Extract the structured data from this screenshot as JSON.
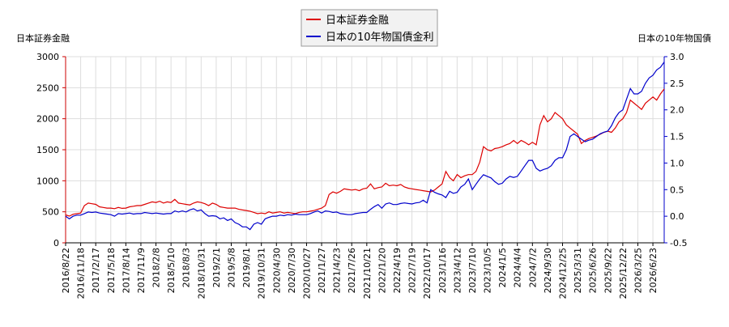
{
  "chart_data": {
    "type": "line",
    "y_label": "日本証券金融",
    "y2_label": "日本の10年物国債",
    "categories": [
      "2016/8/22",
      null,
      null,
      null,
      "2016/11/18",
      null,
      null,
      null,
      "2017/2/17",
      null,
      null,
      null,
      "2017/5/18",
      null,
      null,
      null,
      "2017/8/14",
      null,
      null,
      null,
      "2017/11/9",
      null,
      null,
      null,
      "2018/2/8",
      null,
      null,
      null,
      "2018/5/10",
      null,
      null,
      null,
      "2018/8/3",
      null,
      null,
      null,
      "2018/10/31",
      null,
      null,
      null,
      "2019/2/1",
      null,
      null,
      null,
      "2019/5/8",
      null,
      null,
      null,
      "2019/8/1",
      null,
      null,
      null,
      "2019/10/31",
      null,
      null,
      null,
      "2020/4/30",
      null,
      null,
      null,
      "2020/7/30",
      null,
      null,
      null,
      "2020/10/27",
      null,
      null,
      null,
      "2021/1/27",
      null,
      null,
      null,
      "2021/4/23",
      null,
      null,
      null,
      "2021/7/26",
      null,
      null,
      null,
      "2021/10/21",
      null,
      null,
      null,
      "2022/1/20",
      null,
      null,
      null,
      "2022/4/19",
      null,
      null,
      null,
      "2022/7/19",
      null,
      null,
      null,
      "2022/10/17",
      null,
      null,
      null,
      "2023/1/16",
      null,
      null,
      null,
      "2023/4/12",
      null,
      null,
      null,
      "2023/7/10",
      null,
      null,
      null,
      "2023/10/5",
      null,
      null,
      null,
      "2024/1/5",
      null,
      null,
      null,
      "2024/4/4",
      null,
      null,
      null,
      "2024/7/2",
      null,
      null,
      null,
      "2024/9/30",
      null,
      null,
      null,
      "2024/12/25",
      null,
      null,
      null,
      "2025/3/31",
      null,
      null,
      null,
      "2025/6/26",
      null,
      null,
      null,
      "2025/9/22",
      null,
      null,
      null,
      "2025/12/22",
      null,
      null,
      null,
      "2026/3/25",
      null,
      null,
      null,
      "2026/6/23",
      null,
      null,
      null
    ],
    "series": [
      {
        "name": "日本証券金融",
        "color": "#dd0000",
        "values": [
          450,
          430,
          460,
          470,
          480,
          600,
          640,
          630,
          620,
          580,
          570,
          560,
          560,
          550,
          570,
          555,
          560,
          580,
          590,
          600,
          600,
          620,
          640,
          660,
          650,
          670,
          640,
          660,
          650,
          700,
          640,
          630,
          620,
          610,
          640,
          660,
          650,
          630,
          600,
          640,
          620,
          580,
          570,
          560,
          560,
          560,
          540,
          530,
          520,
          510,
          490,
          470,
          480,
          470,
          500,
          480,
          490,
          500,
          480,
          490,
          480,
          470,
          490,
          500,
          500,
          510,
          520,
          540,
          560,
          600,
          780,
          820,
          800,
          830,
          870,
          860,
          850,
          860,
          840,
          870,
          880,
          950,
          870,
          890,
          900,
          960,
          920,
          930,
          920,
          940,
          900,
          880,
          870,
          860,
          850,
          840,
          830,
          820,
          850,
          900,
          950,
          1150,
          1050,
          1000,
          1100,
          1050,
          1080,
          1100,
          1100,
          1150,
          1300,
          1550,
          1500,
          1480,
          1520,
          1530,
          1550,
          1580,
          1600,
          1650,
          1600,
          1650,
          1620,
          1580,
          1620,
          1580,
          1900,
          2050,
          1950,
          2000,
          2100,
          2050,
          2000,
          1900,
          1850,
          1800,
          1750,
          1600,
          1650,
          1680,
          1700,
          1720,
          1750,
          1780,
          1800,
          1780,
          1850,
          1950,
          2000,
          2100,
          2300,
          2250,
          2200,
          2150,
          2250,
          2300,
          2350,
          2300,
          2400,
          2480
        ]
      },
      {
        "name": "日本の10年物国債金利",
        "color": "#0000cc",
        "axis": "y2",
        "values": [
          0.0,
          -0.05,
          0.0,
          0.02,
          0.02,
          0.05,
          0.08,
          0.07,
          0.08,
          0.06,
          0.05,
          0.04,
          0.03,
          0.0,
          0.05,
          0.04,
          0.05,
          0.06,
          0.04,
          0.05,
          0.05,
          0.07,
          0.06,
          0.05,
          0.06,
          0.05,
          0.04,
          0.05,
          0.05,
          0.1,
          0.08,
          0.1,
          0.08,
          0.12,
          0.14,
          0.1,
          0.12,
          0.05,
          0.0,
          0.01,
          0.0,
          -0.05,
          -0.03,
          -0.08,
          -0.05,
          -0.12,
          -0.15,
          -0.2,
          -0.2,
          -0.25,
          -0.15,
          -0.12,
          -0.15,
          -0.05,
          -0.02,
          0.0,
          0.0,
          0.02,
          0.01,
          0.03,
          0.02,
          0.04,
          0.03,
          0.03,
          0.03,
          0.05,
          0.08,
          0.1,
          0.06,
          0.1,
          0.09,
          0.07,
          0.08,
          0.05,
          0.04,
          0.03,
          0.03,
          0.05,
          0.06,
          0.07,
          0.07,
          0.13,
          0.18,
          0.22,
          0.15,
          0.23,
          0.25,
          0.22,
          0.22,
          0.24,
          0.25,
          0.24,
          0.23,
          0.25,
          0.26,
          0.3,
          0.25,
          0.5,
          0.45,
          0.42,
          0.4,
          0.35,
          0.47,
          0.43,
          0.45,
          0.55,
          0.6,
          0.7,
          0.5,
          0.6,
          0.7,
          0.78,
          0.75,
          0.72,
          0.65,
          0.6,
          0.62,
          0.7,
          0.75,
          0.73,
          0.75,
          0.85,
          0.95,
          1.05,
          1.05,
          0.9,
          0.85,
          0.88,
          0.9,
          0.95,
          1.05,
          1.1,
          1.1,
          1.25,
          1.5,
          1.55,
          1.5,
          1.45,
          1.4,
          1.43,
          1.45,
          1.5,
          1.55,
          1.58,
          1.6,
          1.7,
          1.85,
          1.95,
          2.0,
          2.2,
          2.4,
          2.3,
          2.3,
          2.35,
          2.5,
          2.6,
          2.65,
          2.75,
          2.8,
          2.9
        ]
      }
    ],
    "ylim": [
      0,
      3000
    ],
    "yticks": [
      0,
      500,
      1000,
      1500,
      2000,
      2500,
      3000
    ],
    "y2lim": [
      -0.5,
      3.0
    ],
    "y2ticks": [
      {
        "value": -0.5,
        "label": "-0.5"
      },
      {
        "value": 0,
        "label": "0.0"
      },
      {
        "value": 0.5,
        "label": "0.5"
      },
      {
        "value": 1,
        "label": "1.0"
      },
      {
        "value": 1.5,
        "label": "1.5"
      },
      {
        "value": 2,
        "label": "2.0"
      },
      {
        "value": 2.5,
        "label": "2.5"
      },
      {
        "value": 3,
        "label": "3.0"
      }
    ],
    "grid": true,
    "legend": "top"
  }
}
